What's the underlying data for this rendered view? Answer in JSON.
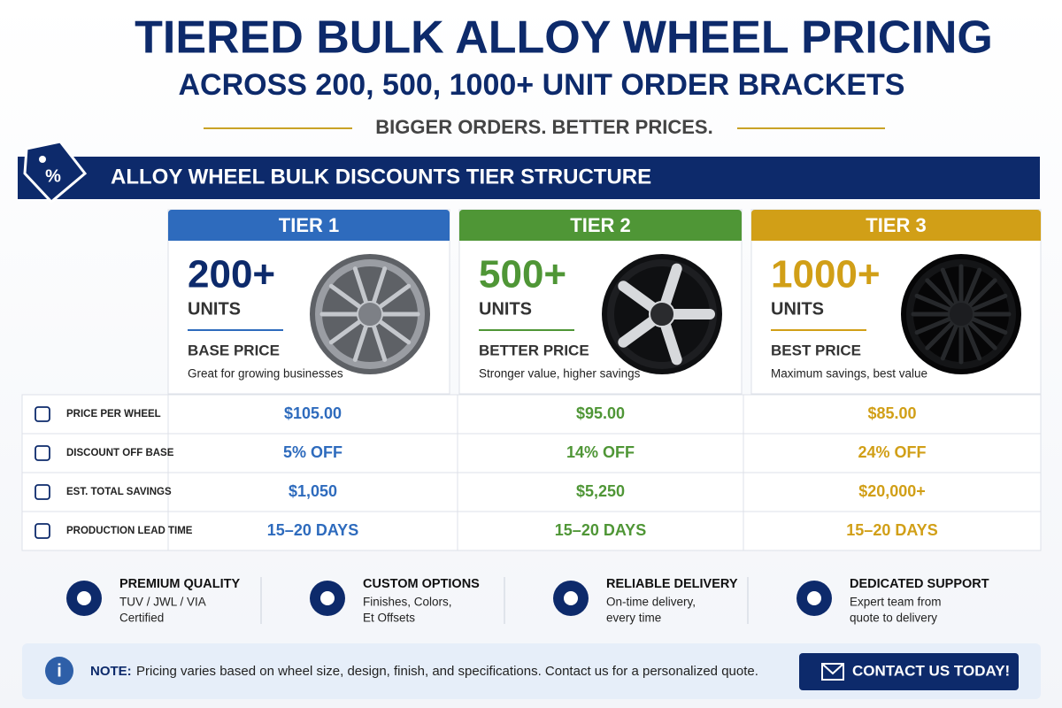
{
  "header": {
    "title": "TIERED BULK ALLOY WHEEL PRICING",
    "subtitle": "ACROSS 200, 500, 1000+ UNIT ORDER BRACKETS",
    "tagline": "BIGGER ORDERS. BETTER PRICES."
  },
  "section_title": "ALLOY WHEEL BULK DISCOUNTS TIER STRUCTURE",
  "tiers": [
    {
      "label": "TIER 1",
      "quantity": "200+",
      "unit": "UNITS",
      "price_label": "BASE PRICE",
      "description": "Great for growing businesses",
      "color": "#2e6bbd"
    },
    {
      "label": "TIER 2",
      "quantity": "500+",
      "unit": "UNITS",
      "price_label": "BETTER PRICE",
      "description": "Stronger value, higher savings",
      "color": "#4f9636"
    },
    {
      "label": "TIER 3",
      "quantity": "1000+",
      "unit": "UNITS",
      "price_label": "BEST PRICE",
      "description": "Maximum savings, best value",
      "color": "#d19f17"
    }
  ],
  "table": {
    "rows": [
      {
        "label": "PRICE PER WHEEL",
        "cells": [
          "$105.00",
          "$95.00",
          "$85.00"
        ]
      },
      {
        "label": "DISCOUNT OFF BASE",
        "cells": [
          "5% OFF",
          "14% OFF",
          "24% OFF"
        ]
      },
      {
        "label": "EST. TOTAL SAVINGS",
        "cells": [
          "$1,050",
          "$5,250",
          "$20,000+"
        ]
      },
      {
        "label": "PRODUCTION LEAD TIME",
        "cells": [
          "15–20 DAYS",
          "15–20 DAYS",
          "15–20 DAYS"
        ]
      }
    ]
  },
  "features": [
    {
      "title": "PREMIUM QUALITY",
      "lines": [
        "TUV / JWL / VIA",
        "Certified"
      ]
    },
    {
      "title": "CUSTOM OPTIONS",
      "lines": [
        "Finishes, Colors,",
        "Et Offsets"
      ]
    },
    {
      "title": "RELIABLE DELIVERY",
      "lines": [
        "On-time delivery,",
        "every time"
      ]
    },
    {
      "title": "DEDICATED SUPPORT",
      "lines": [
        "Expert team from",
        "quote to delivery"
      ]
    }
  ],
  "note": {
    "label": "NOTE:",
    "text": "Pricing varies based on wheel size, design, finish, and specifications. Contact us for a personalized quote."
  },
  "cta": "CONTACT US TODAY!"
}
